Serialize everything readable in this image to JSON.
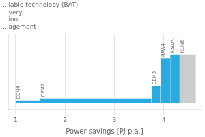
{
  "chart_data": {
    "type": "bar",
    "xlabel": "Power savings [PJ p.a.]",
    "annotations": [
      "...lable technology (BAT)",
      "...very",
      "...ion",
      "...agement"
    ],
    "x": [
      1.0,
      1.5,
      3.75,
      3.93,
      4.13,
      4.32
    ],
    "x_end": [
      1.5,
      3.75,
      3.93,
      4.13,
      4.32,
      4.65
    ],
    "values": [
      0.03,
      0.06,
      0.22,
      0.58,
      0.63,
      0.63
    ],
    "labels": [
      "CEM4",
      "CEM2",
      "CEM3",
      "RAW4",
      "RAW3",
      "KLIN6"
    ],
    "colors": [
      "#29abe2",
      "#29abe2",
      "#29abe2",
      "#29abe2",
      "#29abe2",
      "#cccccc"
    ],
    "xlim": [
      0.85,
      4.75
    ],
    "xticks": [
      1,
      2,
      3,
      4
    ],
    "ylim": [
      -0.08,
      0.9
    ],
    "grid": true,
    "tick_labels": "x"
  }
}
